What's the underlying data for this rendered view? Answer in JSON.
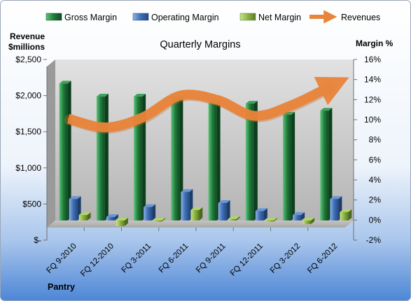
{
  "chart_data": {
    "type": "bar",
    "title": "Quarterly Margins",
    "subtitle": "",
    "left_axis_label": [
      "Revenue",
      "$millions"
    ],
    "right_axis_label": "Margin %",
    "footer_label": "Pantry",
    "categories": [
      "FQ 9-2010",
      "FQ 12-2010",
      "FQ 3-2011",
      "FQ 6-2011",
      "FQ 9-2011",
      "FQ 12-2011",
      "FQ 3-2012",
      "FQ 6-2012"
    ],
    "left_axis": {
      "min": 0,
      "max": 2500,
      "step": 500,
      "tick_labels": [
        "$-",
        "$500",
        "$1,000",
        "$1,500",
        "$2,000",
        "$2,500"
      ]
    },
    "right_axis": {
      "min": -2,
      "max": 16,
      "step": 2,
      "tick_labels": [
        "-2%",
        "0%",
        "2%",
        "4%",
        "6%",
        "8%",
        "10%",
        "12%",
        "14%",
        "16%"
      ]
    },
    "legend": {
      "position": "top"
    },
    "series": [
      {
        "name": "Gross Margin",
        "axis": "right",
        "kind": "bar",
        "color": "#1f7a3a",
        "values": [
          13.6,
          12.3,
          12.3,
          12.0,
          11.6,
          11.6,
          10.5,
          10.9
        ]
      },
      {
        "name": "Operating Margin",
        "axis": "right",
        "kind": "bar",
        "color": "#3f6fb5",
        "values": [
          2.1,
          0.3,
          1.3,
          2.8,
          1.7,
          0.9,
          0.5,
          2.1
        ]
      },
      {
        "name": "Net Margin",
        "axis": "right",
        "kind": "bar",
        "color": "#8ab342",
        "values": [
          0.5,
          -0.6,
          -0.1,
          1.0,
          0.1,
          -0.1,
          -0.4,
          0.8
        ]
      },
      {
        "name": "Revenues",
        "axis": "left",
        "kind": "line",
        "color": "#e9843a",
        "values": [
          1680,
          1560,
          1700,
          2000,
          1940,
          1720,
          1870,
          2120
        ]
      }
    ],
    "grid": false
  }
}
